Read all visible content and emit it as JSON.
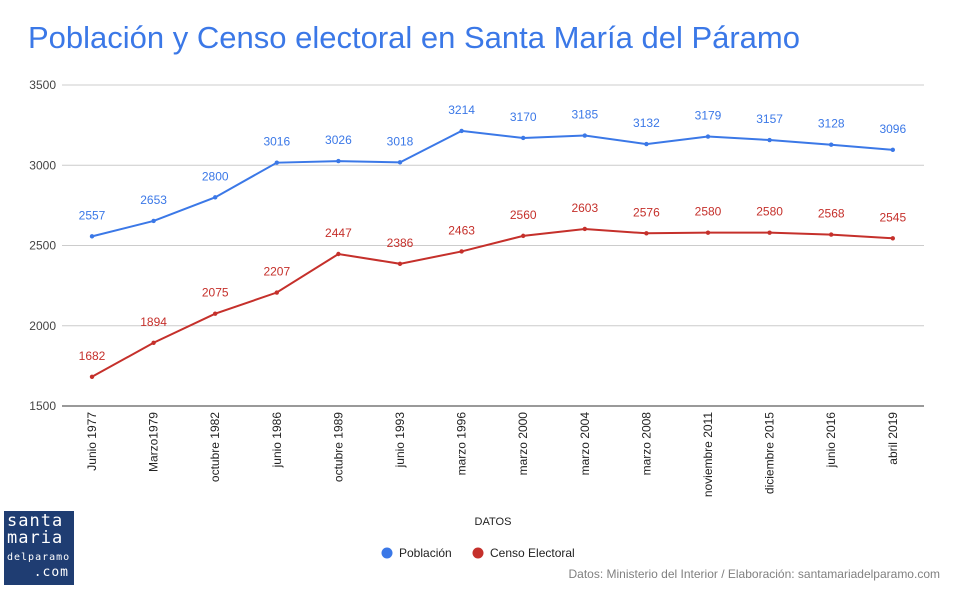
{
  "chart_data": {
    "type": "line",
    "title": "Población y Censo electoral en Santa María del Páramo",
    "xlabel": "DATOS",
    "ylabel": "",
    "ylim": [
      1500,
      3500
    ],
    "yticks": [
      1500,
      2000,
      2500,
      3000,
      3500
    ],
    "grid": true,
    "legend_position": "bottom",
    "categories": [
      "Junio 1977",
      "Marzo1979",
      "octubre 1982",
      "junio 1986",
      "octubre 1989",
      "junio 1993",
      "marzo 1996",
      "marzo 2000",
      "marzo 2004",
      "marzo 2008",
      "noviembre 2011",
      "diciembre 2015",
      "junio 2016",
      "abril 2019"
    ],
    "series": [
      {
        "name": "Población",
        "color": "#3b78e7",
        "values": [
          2557,
          2653,
          2800,
          3016,
          3026,
          3018,
          3214,
          3170,
          3185,
          3132,
          3179,
          3157,
          3128,
          3096
        ]
      },
      {
        "name": "Censo Electoral",
        "color": "#c5302b",
        "values": [
          1682,
          1894,
          2075,
          2207,
          2447,
          2386,
          2463,
          2560,
          2603,
          2576,
          2580,
          2580,
          2568,
          2545
        ]
      }
    ]
  },
  "logo": {
    "line1": "santa",
    "line2": "maria",
    "line3": "delparamo",
    "line4": ".com"
  },
  "source": "Datos: Ministerio del Interior / Elaboración: santamariadelparamo.com"
}
